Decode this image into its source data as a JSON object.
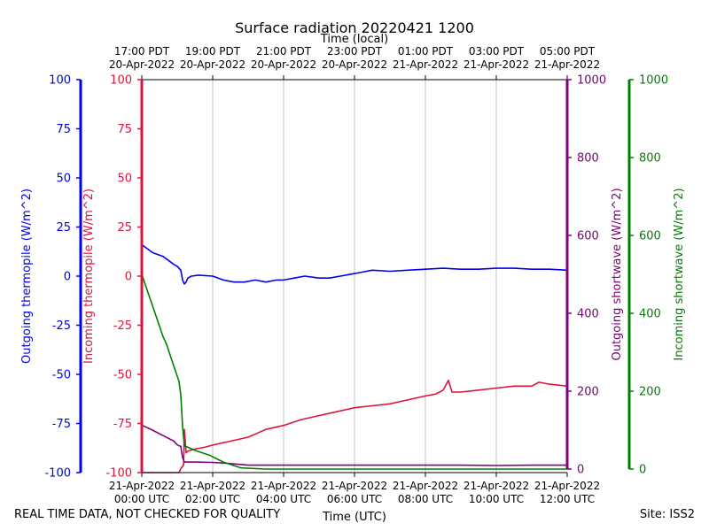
{
  "chart_data": {
    "type": "line",
    "title": "Surface radiation 20220421 1200",
    "top_xlabel": "Time (local)",
    "xlabel": "Time (UTC)",
    "footer_left": "REAL TIME DATA, NOT CHECKED FOR QUALITY",
    "footer_right": "Site: ISS2",
    "x_range_hours": [
      0,
      12.0
    ],
    "utc_ticks": [
      {
        "hour": 0,
        "line1": "21-Apr-2022",
        "line2": "00:00 UTC"
      },
      {
        "hour": 2,
        "line1": "21-Apr-2022",
        "line2": "02:00 UTC"
      },
      {
        "hour": 4,
        "line1": "21-Apr-2022",
        "line2": "04:00 UTC"
      },
      {
        "hour": 6,
        "line1": "21-Apr-2022",
        "line2": "06:00 UTC"
      },
      {
        "hour": 8,
        "line1": "21-Apr-2022",
        "line2": "08:00 UTC"
      },
      {
        "hour": 10,
        "line1": "21-Apr-2022",
        "line2": "10:00 UTC"
      },
      {
        "hour": 12,
        "line1": "21-Apr-2022",
        "line2": "12:00 UTC"
      }
    ],
    "local_ticks": [
      {
        "hour": 0,
        "line1": "17:00 PDT",
        "line2": "20-Apr-2022"
      },
      {
        "hour": 2,
        "line1": "19:00 PDT",
        "line2": "20-Apr-2022"
      },
      {
        "hour": 4,
        "line1": "21:00 PDT",
        "line2": "20-Apr-2022"
      },
      {
        "hour": 6,
        "line1": "23:00 PDT",
        "line2": "20-Apr-2022"
      },
      {
        "hour": 8,
        "line1": "01:00 PDT",
        "line2": "21-Apr-2022"
      },
      {
        "hour": 10,
        "line1": "03:00 PDT",
        "line2": "21-Apr-2022"
      },
      {
        "hour": 12,
        "line1": "05:00 PDT",
        "line2": "21-Apr-2022"
      }
    ],
    "axes": [
      {
        "id": "out_thermo",
        "label": "Outgoing thermopile (W/m^2)",
        "color": "#0000ee",
        "range": [
          -100,
          100
        ],
        "ticks": [
          -100,
          -75,
          -50,
          -25,
          0,
          25,
          50,
          75,
          100
        ]
      },
      {
        "id": "in_thermo",
        "label": "Incoming thermopile (W/m^2)",
        "color": "#dc143c",
        "range": [
          -100,
          100
        ],
        "ticks": [
          -100,
          -75,
          -50,
          -25,
          0,
          25,
          50,
          75,
          100
        ]
      },
      {
        "id": "out_sw",
        "label": "Outgoing shortwave (W/m^2)",
        "color": "#800080",
        "range": [
          0,
          1000
        ],
        "ticks": [
          0,
          200,
          400,
          600,
          800,
          1000
        ]
      },
      {
        "id": "in_sw",
        "label": "Incoming shortwave (W/m^2)",
        "color": "#008000",
        "range": [
          0,
          1000
        ],
        "ticks": [
          0,
          200,
          400,
          600,
          800,
          1000
        ]
      }
    ],
    "series": [
      {
        "name": "Outgoing thermopile",
        "axis": "out_thermo",
        "color": "#0000ee",
        "x": [
          0,
          0.15,
          0.3,
          0.45,
          0.6,
          0.75,
          0.9,
          1.0,
          1.1,
          1.15,
          1.2,
          1.25,
          1.3,
          1.4,
          1.6,
          2.0,
          2.3,
          2.6,
          2.9,
          3.2,
          3.5,
          3.8,
          4.0,
          4.3,
          4.6,
          5.0,
          5.3,
          5.6,
          5.9,
          6.2,
          6.5,
          7.0,
          7.5,
          8.0,
          8.5,
          9.0,
          9.5,
          10.0,
          10.5,
          11.0,
          11.5,
          12.0
        ],
        "y": [
          16,
          14,
          12,
          11,
          10,
          8,
          6,
          5,
          3,
          -2,
          -4,
          -3,
          -1,
          0,
          0.5,
          0,
          -2,
          -3,
          -3,
          -2,
          -3,
          -2,
          -2,
          -1,
          0,
          -1,
          -1,
          0,
          1,
          2,
          3,
          2.5,
          3,
          3.5,
          4,
          3.5,
          3.5,
          4,
          4,
          3.5,
          3.5,
          3
        ]
      },
      {
        "name": "Incoming thermopile",
        "axis": "in_thermo",
        "color": "#dc143c",
        "x": [
          0,
          0.3,
          0.6,
          0.9,
          1.05,
          1.1,
          1.18,
          1.2,
          1.25,
          1.3,
          1.5,
          1.8,
          2.0,
          2.5,
          3.0,
          3.5,
          4.0,
          4.5,
          5.0,
          5.5,
          6.0,
          6.5,
          7.0,
          7.5,
          8.0,
          8.3,
          8.5,
          8.65,
          8.75,
          9.0,
          9.5,
          10.0,
          10.5,
          11.0,
          11.2,
          11.5,
          12.0
        ],
        "y": [
          -100,
          -100,
          -100,
          -100,
          -100,
          -98,
          -96,
          -78,
          -90,
          -89,
          -88,
          -87,
          -86,
          -84,
          -82,
          -78,
          -76,
          -73,
          -71,
          -69,
          -67,
          -66,
          -65,
          -63,
          -61,
          -60,
          -58,
          -53,
          -59,
          -59,
          -58,
          -57,
          -56,
          -56,
          -54,
          -55,
          -56
        ]
      },
      {
        "name": "Outgoing shortwave",
        "axis": "out_sw",
        "color": "#800080",
        "x": [
          0,
          0.3,
          0.6,
          0.9,
          1.0,
          1.1,
          1.15,
          1.2,
          1.3,
          1.5,
          2.0,
          2.5,
          3.0,
          4.0,
          5.0,
          6.0,
          7.0,
          8.0,
          9.0,
          10.0,
          11.0,
          12.0
        ],
        "y": [
          113,
          100,
          86,
          72,
          62,
          58,
          30,
          18,
          18,
          18,
          17,
          14,
          10,
          10,
          10,
          10,
          10,
          10,
          10,
          9,
          10,
          10
        ]
      },
      {
        "name": "Incoming shortwave",
        "axis": "in_sw",
        "color": "#008000",
        "x": [
          0,
          0.3,
          0.6,
          0.7,
          0.9,
          1.05,
          1.1,
          1.15,
          1.2,
          1.5,
          1.9,
          2.3,
          2.8,
          3.5,
          5.0,
          7.0,
          9.0,
          11.0,
          12.0
        ],
        "y": [
          500,
          420,
          340,
          320,
          265,
          225,
          190,
          110,
          60,
          48,
          36,
          18,
          3,
          0,
          0,
          0,
          0,
          0,
          0
        ]
      }
    ]
  }
}
